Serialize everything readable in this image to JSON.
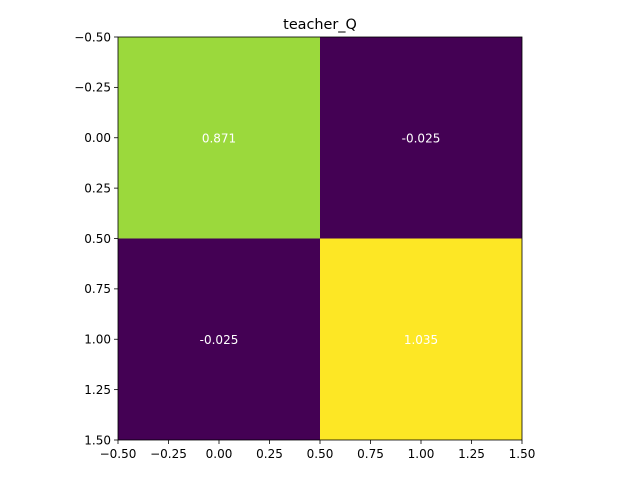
{
  "chart_data": {
    "type": "heatmap",
    "title": "teacher_Q",
    "xlabel": "",
    "ylabel": "",
    "rows": 2,
    "cols": 2,
    "values": [
      [
        0.871,
        -0.025
      ],
      [
        -0.025,
        1.035
      ]
    ],
    "cell_labels": [
      [
        "0.871",
        "-0.025"
      ],
      [
        "-0.025",
        "1.035"
      ]
    ],
    "xlim": [
      -0.5,
      1.5
    ],
    "ylim": [
      1.5,
      -0.5
    ],
    "xticks": [
      -0.5,
      -0.25,
      0.0,
      0.25,
      0.5,
      0.75,
      1.0,
      1.25,
      1.5
    ],
    "yticks": [
      -0.5,
      -0.25,
      0.0,
      0.25,
      0.5,
      0.75,
      1.0,
      1.25,
      1.5
    ],
    "xtick_labels": [
      "−0.50",
      "−0.25",
      "0.00",
      "0.25",
      "0.50",
      "0.75",
      "1.00",
      "1.25",
      "1.50"
    ],
    "ytick_labels": [
      "−0.50",
      "−0.25",
      "0.00",
      "0.25",
      "0.50",
      "0.75",
      "1.00",
      "1.25",
      "1.50"
    ],
    "colormap": "viridis",
    "colors": {
      "cell_colors": [
        [
          "#9bd93c",
          "#440154"
        ],
        [
          "#440154",
          "#fde725"
        ]
      ],
      "annotation_text": "#ffffff",
      "axis": "#000000"
    },
    "grid": false
  }
}
